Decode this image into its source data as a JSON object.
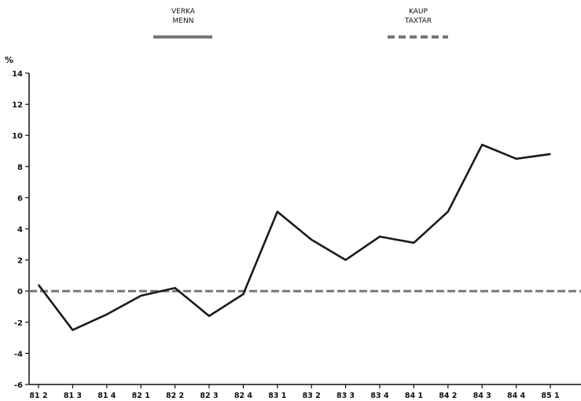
{
  "chart_data": {
    "type": "line",
    "ylabel": "%",
    "ylim": [
      -6,
      14
    ],
    "yticks": [
      14,
      12,
      10,
      8,
      6,
      4,
      2,
      0,
      -2,
      -4,
      -6
    ],
    "categories": [
      "81 2",
      "81 3",
      "81 4",
      "82 1",
      "82 2",
      "82 3",
      "82 4",
      "83 1",
      "83 2",
      "83 3",
      "83 4",
      "84 1",
      "84 2",
      "84 3",
      "84 4",
      "85 1"
    ],
    "grid": false,
    "legend_position": "top",
    "series": [
      {
        "name": "VERKA MENN",
        "legend_lines": [
          "VERKA",
          "MENN"
        ],
        "style": "solid",
        "color": "#1a1a1a",
        "values": [
          0.4,
          -2.5,
          -1.5,
          -0.3,
          0.2,
          -1.6,
          -0.2,
          5.1,
          3.3,
          2.0,
          3.5,
          3.1,
          5.1,
          9.4,
          8.5,
          8.8
        ]
      },
      {
        "name": "KAUP TAXTAR",
        "legend_lines": [
          "KAUP",
          "TAXTAR"
        ],
        "style": "dashed",
        "color": "#777777",
        "values": [
          0,
          0,
          0,
          0,
          0,
          0,
          0,
          0,
          0,
          0,
          0,
          0,
          0,
          0,
          0,
          0
        ]
      }
    ]
  }
}
